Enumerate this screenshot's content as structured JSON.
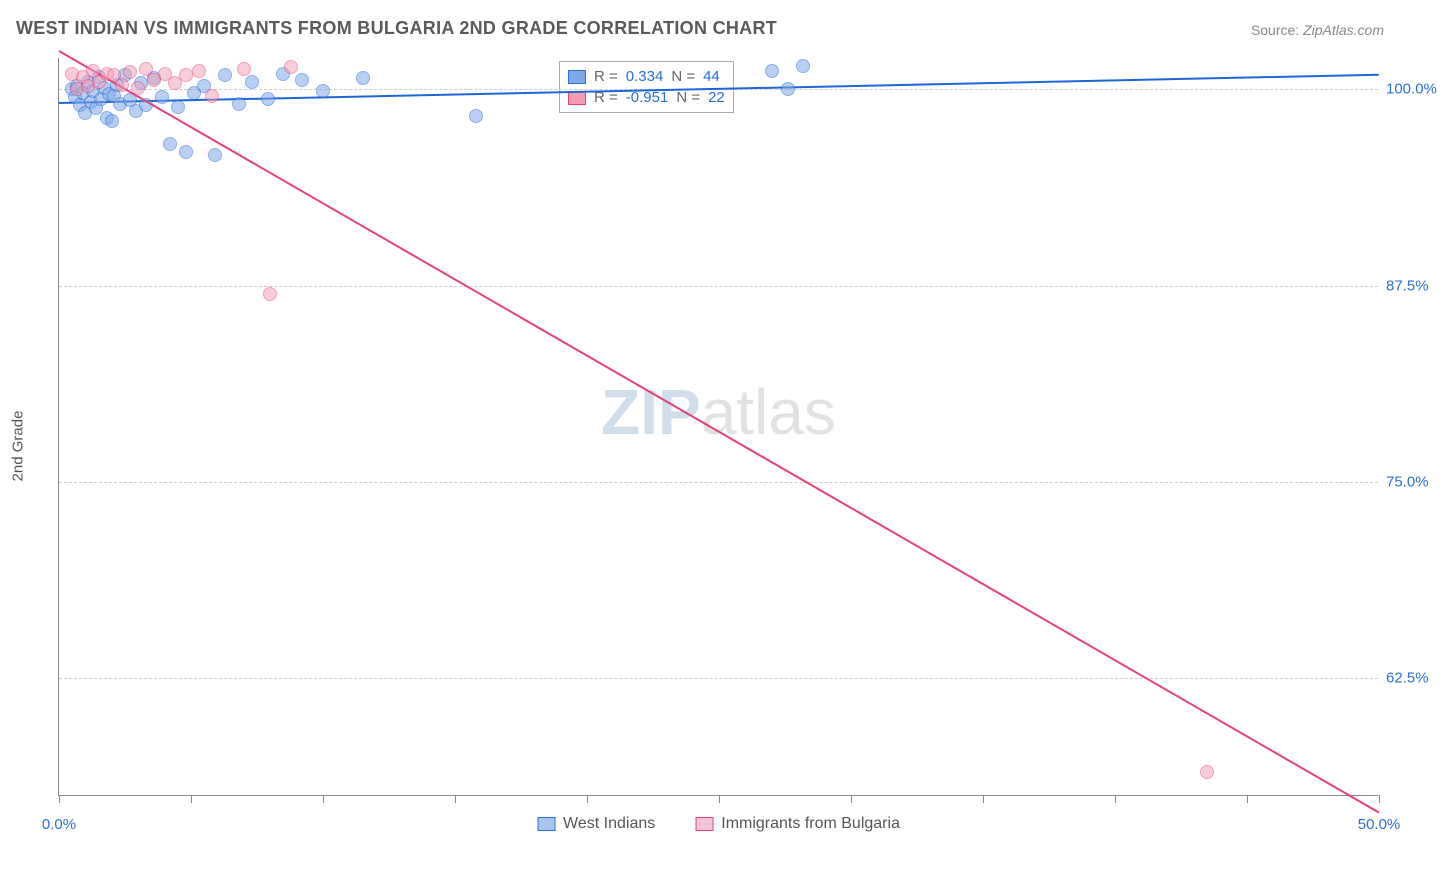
{
  "title": "WEST INDIAN VS IMMIGRANTS FROM BULGARIA 2ND GRADE CORRELATION CHART",
  "source": {
    "label": "Source: ",
    "value": "ZipAtlas.com"
  },
  "ylabel": "2nd Grade",
  "watermark": {
    "left": "ZIP",
    "right": "atlas"
  },
  "chart": {
    "type": "scatter",
    "xlim": [
      0,
      50
    ],
    "ylim": [
      55,
      102
    ],
    "x_ticks": [
      0,
      5,
      10,
      15,
      20,
      25,
      30,
      35,
      40,
      45,
      50
    ],
    "x_tick_labels": {
      "0": "0.0%",
      "50": "50.0%"
    },
    "y_ticks": [
      62.5,
      75.0,
      87.5,
      100.0
    ],
    "y_tick_labels": [
      "62.5%",
      "75.0%",
      "87.5%",
      "100.0%"
    ],
    "grid_color": "#cccccc",
    "axis_color": "#888888",
    "background_color": "#ffffff",
    "point_radius": 7,
    "series": [
      {
        "name": "West Indians",
        "fill": "#7fa9e6",
        "stroke": "#2a6fd6",
        "opacity": 0.55,
        "R": "0.334",
        "N": "44",
        "regression": {
          "x1": 0,
          "y1": 99.2,
          "x2": 50,
          "y2": 101.0,
          "color": "#1d66d6",
          "width": 2
        },
        "points": [
          [
            0.5,
            100.0
          ],
          [
            0.6,
            99.5
          ],
          [
            0.7,
            100.2
          ],
          [
            0.8,
            99.0
          ],
          [
            0.9,
            99.8
          ],
          [
            1.0,
            98.5
          ],
          [
            1.1,
            100.5
          ],
          [
            1.2,
            99.2
          ],
          [
            1.3,
            99.9
          ],
          [
            1.4,
            98.8
          ],
          [
            1.5,
            100.8
          ],
          [
            1.6,
            99.4
          ],
          [
            1.7,
            100.1
          ],
          [
            1.8,
            98.2
          ],
          [
            1.9,
            99.7
          ],
          [
            2.0,
            98.0
          ],
          [
            2.1,
            99.6
          ],
          [
            2.2,
            100.3
          ],
          [
            2.3,
            99.1
          ],
          [
            2.5,
            100.9
          ],
          [
            2.7,
            99.3
          ],
          [
            2.9,
            98.6
          ],
          [
            3.1,
            100.4
          ],
          [
            3.3,
            99.0
          ],
          [
            3.6,
            100.7
          ],
          [
            3.9,
            99.5
          ],
          [
            4.2,
            96.5
          ],
          [
            4.5,
            98.9
          ],
          [
            4.8,
            96.0
          ],
          [
            5.1,
            99.8
          ],
          [
            5.5,
            100.2
          ],
          [
            5.9,
            95.8
          ],
          [
            6.3,
            100.9
          ],
          [
            6.8,
            99.1
          ],
          [
            7.3,
            100.5
          ],
          [
            7.9,
            99.4
          ],
          [
            8.5,
            101.0
          ],
          [
            9.2,
            100.6
          ],
          [
            10.0,
            99.9
          ],
          [
            11.5,
            100.7
          ],
          [
            15.8,
            98.3
          ],
          [
            27.0,
            101.2
          ],
          [
            27.6,
            100.0
          ],
          [
            28.2,
            101.5
          ]
        ]
      },
      {
        "name": "Immigrants from Bulgaria",
        "fill": "#f59bb4",
        "stroke": "#e6427a",
        "opacity": 0.5,
        "R": "-0.951",
        "N": "22",
        "regression": {
          "x1": 0,
          "y1": 102.5,
          "x2": 50,
          "y2": 54.0,
          "color": "#e6427a",
          "width": 2
        },
        "points": [
          [
            0.5,
            101.0
          ],
          [
            0.7,
            100.0
          ],
          [
            0.9,
            100.8
          ],
          [
            1.1,
            100.2
          ],
          [
            1.3,
            101.2
          ],
          [
            1.5,
            100.5
          ],
          [
            1.8,
            101.0
          ],
          [
            2.1,
            100.9
          ],
          [
            2.4,
            100.3
          ],
          [
            2.7,
            101.1
          ],
          [
            3.0,
            100.1
          ],
          [
            3.3,
            101.3
          ],
          [
            3.6,
            100.6
          ],
          [
            4.0,
            101.0
          ],
          [
            4.4,
            100.4
          ],
          [
            4.8,
            100.9
          ],
          [
            5.3,
            101.2
          ],
          [
            5.8,
            99.6
          ],
          [
            7.0,
            101.3
          ],
          [
            8.8,
            101.4
          ],
          [
            8.0,
            87.0
          ],
          [
            43.5,
            56.5
          ]
        ]
      }
    ],
    "stats_box": {
      "label_R": "R =",
      "label_N": "N ="
    },
    "legend": [
      {
        "label": "West Indians",
        "fill": "#a8c5f0",
        "stroke": "#2a6fd6"
      },
      {
        "label": "Immigrants from Bulgaria",
        "fill": "#f8c5d4",
        "stroke": "#e6427a"
      }
    ]
  }
}
